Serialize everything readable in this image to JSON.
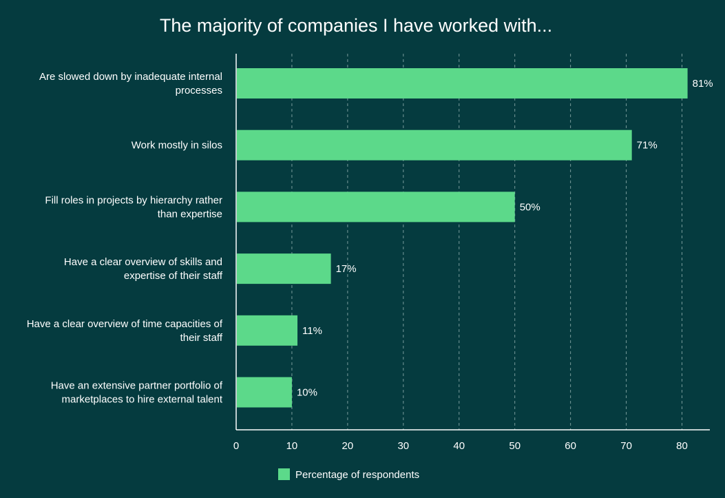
{
  "chart_data": {
    "type": "bar",
    "orientation": "horizontal",
    "title": "The majority of companies I have worked with...",
    "categories": [
      [
        "Are slowed down by inadequate internal",
        "processes"
      ],
      [
        "Work mostly in silos"
      ],
      [
        "Fill roles in projects by hierarchy rather",
        "than expertise"
      ],
      [
        "Have a clear overview of skills and",
        "expertise of their staff"
      ],
      [
        "Have a clear overview of time capacities of",
        "their staff"
      ],
      [
        "Have an extensive partner portfolio of",
        "marketplaces to hire external talent"
      ]
    ],
    "series": [
      {
        "name": "Percentage of respondents",
        "values": [
          81,
          71,
          50,
          17,
          11,
          10
        ],
        "labels": [
          "81%",
          "71%",
          "50%",
          "17%",
          "11%",
          "10%"
        ]
      }
    ],
    "xlim": [
      0,
      85
    ],
    "xticks": [
      0,
      10,
      20,
      30,
      40,
      50,
      60,
      70,
      80
    ],
    "grid": true,
    "legend_position": "bottom-center",
    "colors": {
      "background": "#053b3f",
      "bar": "#5cd98a",
      "text": "#ffffff",
      "grid": "#7a9c9c",
      "axis": "#ffffff"
    }
  }
}
